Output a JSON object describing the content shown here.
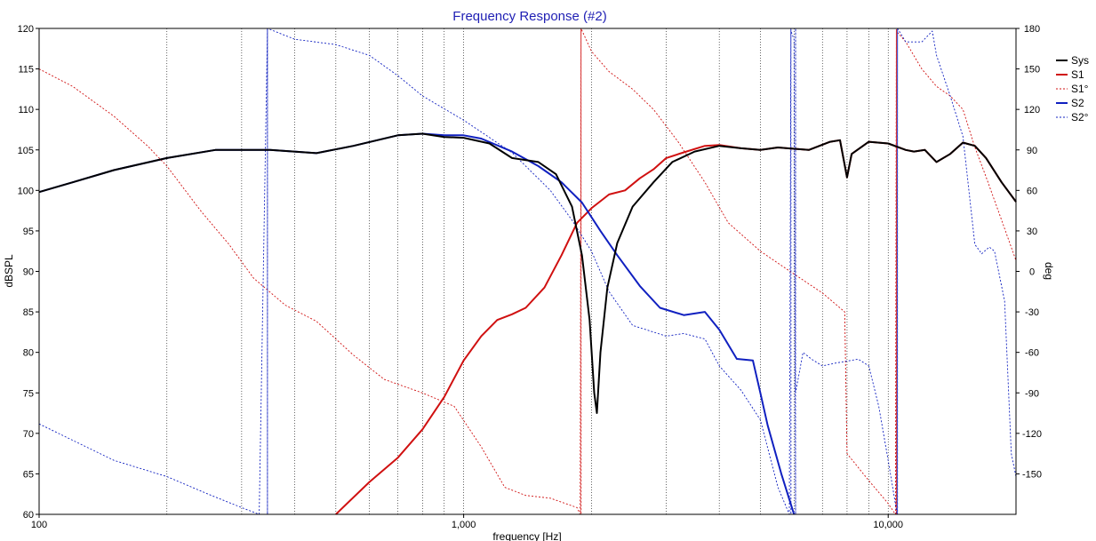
{
  "chart_data": {
    "type": "line",
    "title": "Frequency Response (#2)",
    "xlabel": "frequency [Hz]",
    "ylabel": "dBSPL",
    "y2label": "deg",
    "x_scale": "log",
    "xlim": [
      100,
      20000
    ],
    "ylim": [
      60,
      120
    ],
    "y2lim": [
      -180,
      180
    ],
    "x_tick_labels": [
      {
        "value": 100,
        "label": "100"
      },
      {
        "value": 1000,
        "label": "1,000"
      },
      {
        "value": 10000,
        "label": "10,000"
      }
    ],
    "y_ticks": [
      60,
      65,
      70,
      75,
      80,
      85,
      90,
      95,
      100,
      105,
      110,
      115,
      120
    ],
    "y2_ticks": [
      -150,
      -120,
      -90,
      -60,
      -30,
      0,
      30,
      60,
      90,
      120,
      150,
      180
    ],
    "grid": true,
    "legend_position": "right",
    "colors": {
      "title": "#1f1fb4",
      "sys": "#000000",
      "s1": "#d01010",
      "s2": "#1020c0",
      "grid": "#000000"
    },
    "series": [
      {
        "name": "Sys",
        "axis": "left",
        "style": "solid",
        "points": [
          [
            100,
            99.8
          ],
          [
            120,
            101
          ],
          [
            150,
            102.5
          ],
          [
            200,
            104
          ],
          [
            260,
            105
          ],
          [
            350,
            105
          ],
          [
            450,
            104.6
          ],
          [
            550,
            105.5
          ],
          [
            700,
            106.8
          ],
          [
            800,
            107
          ],
          [
            900,
            106.6
          ],
          [
            1000,
            106.5
          ],
          [
            1150,
            105.8
          ],
          [
            1300,
            104
          ],
          [
            1500,
            103.5
          ],
          [
            1650,
            102
          ],
          [
            1800,
            98
          ],
          [
            1900,
            92
          ],
          [
            1980,
            84
          ],
          [
            2030,
            75
          ],
          [
            2060,
            72.5
          ],
          [
            2100,
            80
          ],
          [
            2180,
            88
          ],
          [
            2300,
            93.5
          ],
          [
            2500,
            98
          ],
          [
            2800,
            101
          ],
          [
            3100,
            103.5
          ],
          [
            3500,
            104.8
          ],
          [
            4000,
            105.5
          ],
          [
            4500,
            105.2
          ],
          [
            5000,
            105
          ],
          [
            5500,
            105.3
          ],
          [
            6500,
            105
          ],
          [
            7300,
            106
          ],
          [
            7700,
            106.2
          ],
          [
            8000,
            101.6
          ],
          [
            8200,
            104.5
          ],
          [
            9000,
            106
          ],
          [
            10000,
            105.8
          ],
          [
            11000,
            105
          ],
          [
            11500,
            104.8
          ],
          [
            12200,
            105
          ],
          [
            13000,
            103.5
          ],
          [
            14000,
            104.5
          ],
          [
            15000,
            105.9
          ],
          [
            16000,
            105.5
          ],
          [
            17000,
            104
          ],
          [
            18500,
            101
          ],
          [
            20000,
            98.6
          ]
        ]
      },
      {
        "name": "S1",
        "axis": "left",
        "style": "solid",
        "points": [
          [
            500,
            60
          ],
          [
            600,
            64
          ],
          [
            700,
            67
          ],
          [
            800,
            70.5
          ],
          [
            900,
            74.5
          ],
          [
            1000,
            79
          ],
          [
            1100,
            82
          ],
          [
            1200,
            84
          ],
          [
            1300,
            84.7
          ],
          [
            1400,
            85.5
          ],
          [
            1550,
            88
          ],
          [
            1700,
            92
          ],
          [
            1850,
            96
          ],
          [
            2000,
            97.8
          ],
          [
            2200,
            99.5
          ],
          [
            2400,
            100
          ],
          [
            2600,
            101.5
          ],
          [
            2800,
            102.6
          ],
          [
            3000,
            104
          ],
          [
            3300,
            104.7
          ],
          [
            3700,
            105.5
          ],
          [
            4000,
            105.6
          ],
          [
            4500,
            105.2
          ],
          [
            5000,
            105
          ],
          [
            5500,
            105.3
          ],
          [
            6500,
            105
          ],
          [
            7300,
            106
          ],
          [
            7700,
            106.2
          ],
          [
            8000,
            101.6
          ],
          [
            8200,
            104.5
          ],
          [
            9000,
            106
          ],
          [
            10000,
            105.8
          ],
          [
            11000,
            105
          ],
          [
            11500,
            104.8
          ],
          [
            12200,
            105
          ],
          [
            13000,
            103.5
          ],
          [
            14000,
            104.5
          ],
          [
            15000,
            105.9
          ],
          [
            16000,
            105.5
          ],
          [
            17000,
            104
          ],
          [
            18500,
            101
          ],
          [
            20000,
            98.6
          ]
        ]
      },
      {
        "name": "S1°",
        "axis": "right",
        "style": "dashed",
        "points": [
          [
            100,
            150
          ],
          [
            120,
            137
          ],
          [
            150,
            115
          ],
          [
            180,
            93
          ],
          [
            200,
            78
          ],
          [
            240,
            45
          ],
          [
            280,
            20
          ],
          [
            320,
            -5
          ],
          [
            380,
            -25
          ],
          [
            450,
            -37
          ],
          [
            550,
            -62
          ],
          [
            650,
            -80
          ],
          [
            800,
            -90
          ],
          [
            950,
            -100
          ],
          [
            1100,
            -130
          ],
          [
            1250,
            -160
          ],
          [
            1400,
            -166
          ],
          [
            1600,
            -168
          ],
          [
            1850,
            -175
          ],
          [
            1880,
            -180
          ],
          [
            1890,
            180
          ],
          [
            2000,
            163
          ],
          [
            2200,
            148
          ],
          [
            2500,
            135
          ],
          [
            2800,
            120
          ],
          [
            3200,
            96
          ],
          [
            3700,
            66
          ],
          [
            4200,
            36
          ],
          [
            5000,
            15
          ],
          [
            6000,
            -2
          ],
          [
            7000,
            -16
          ],
          [
            7900,
            -30
          ],
          [
            8000,
            -135
          ],
          [
            9000,
            -155
          ],
          [
            10000,
            -172
          ],
          [
            10400,
            -180
          ],
          [
            10450,
            178
          ],
          [
            11000,
            170
          ],
          [
            12000,
            150
          ],
          [
            13000,
            137
          ],
          [
            14000,
            130
          ],
          [
            15000,
            120
          ],
          [
            16000,
            92
          ],
          [
            17000,
            70
          ],
          [
            18500,
            38
          ],
          [
            20000,
            8
          ]
        ]
      },
      {
        "name": "S2",
        "axis": "left",
        "style": "solid",
        "points": [
          [
            100,
            99.8
          ],
          [
            120,
            101
          ],
          [
            150,
            102.5
          ],
          [
            200,
            104
          ],
          [
            260,
            105
          ],
          [
            350,
            105
          ],
          [
            450,
            104.6
          ],
          [
            550,
            105.5
          ],
          [
            700,
            106.8
          ],
          [
            800,
            107
          ],
          [
            900,
            106.8
          ],
          [
            1000,
            106.8
          ],
          [
            1100,
            106.4
          ],
          [
            1300,
            104.8
          ],
          [
            1500,
            103
          ],
          [
            1700,
            101
          ],
          [
            1900,
            98.5
          ],
          [
            2100,
            95
          ],
          [
            2300,
            92
          ],
          [
            2600,
            88.2
          ],
          [
            2900,
            85.5
          ],
          [
            3300,
            84.6
          ],
          [
            3700,
            85
          ],
          [
            4000,
            82.8
          ],
          [
            4400,
            79.2
          ],
          [
            4800,
            79
          ],
          [
            5000,
            75
          ],
          [
            5200,
            71
          ],
          [
            5600,
            65
          ],
          [
            6000,
            60
          ]
        ]
      },
      {
        "name": "S2°",
        "axis": "right",
        "style": "dashed",
        "points": [
          [
            100,
            -113
          ],
          [
            150,
            -140
          ],
          [
            200,
            -152
          ],
          [
            250,
            -165
          ],
          [
            300,
            -175
          ],
          [
            330,
            -180
          ],
          [
            345,
            180
          ],
          [
            400,
            172
          ],
          [
            500,
            168
          ],
          [
            600,
            160
          ],
          [
            700,
            145
          ],
          [
            800,
            130
          ],
          [
            1000,
            112
          ],
          [
            1300,
            88
          ],
          [
            1600,
            60
          ],
          [
            1800,
            38
          ],
          [
            2000,
            15
          ],
          [
            2200,
            -15
          ],
          [
            2500,
            -40
          ],
          [
            3000,
            -48
          ],
          [
            3300,
            -46
          ],
          [
            3700,
            -50
          ],
          [
            4000,
            -70
          ],
          [
            4500,
            -88
          ],
          [
            5000,
            -110
          ],
          [
            5500,
            -160
          ],
          [
            5850,
            -180
          ],
          [
            5900,
            178
          ],
          [
            6000,
            172
          ],
          [
            6050,
            -90
          ],
          [
            6300,
            -60
          ],
          [
            6600,
            -65
          ],
          [
            7000,
            -70
          ],
          [
            7500,
            -68
          ],
          [
            8500,
            -65
          ],
          [
            9000,
            -70
          ],
          [
            9500,
            -100
          ],
          [
            10000,
            -140
          ],
          [
            10500,
            -180
          ],
          [
            10520,
            180
          ],
          [
            11000,
            170
          ],
          [
            12000,
            170
          ],
          [
            12700,
            178
          ],
          [
            13000,
            160
          ],
          [
            14000,
            130
          ],
          [
            15000,
            100
          ],
          [
            16000,
            20
          ],
          [
            16600,
            13
          ],
          [
            17300,
            18
          ],
          [
            17800,
            15
          ],
          [
            18800,
            -22
          ],
          [
            19500,
            -135
          ],
          [
            20000,
            -152
          ]
        ]
      }
    ]
  }
}
